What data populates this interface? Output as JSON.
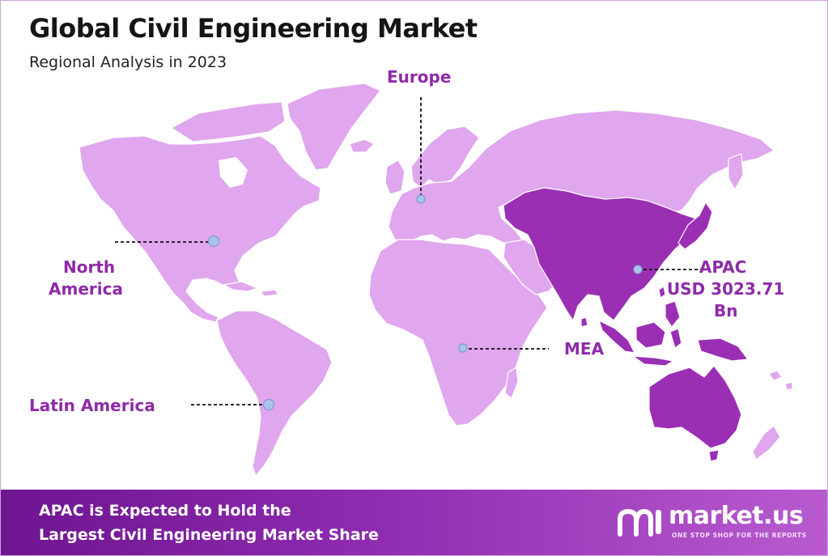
{
  "header": {
    "title": "Global Civil Engineering Market",
    "subtitle": "Regional Analysis in 2023"
  },
  "map": {
    "colors": {
      "land": "#e0a6ee",
      "highlight": "#9a2fb4",
      "marker": "#a9c4ec",
      "marker_stroke": "#7e9fd0",
      "leader": "#111111",
      "label": "#8e2aa8"
    },
    "regions": {
      "europe": {
        "label": "Europe"
      },
      "north_america": {
        "line1": "North",
        "line2": "America"
      },
      "latin_america": {
        "label": "Latin America"
      },
      "mea": {
        "label": "MEA"
      },
      "apac": {
        "line1": "APAC",
        "line2": "USD 3023.71",
        "line3": "Bn",
        "highlighted": true
      }
    }
  },
  "footer": {
    "line1": "APAC is Expected to Hold the",
    "line2": "Largest Civil Engineering Market Share",
    "logo_name": "market.us",
    "logo_tagline": "ONE STOP SHOP FOR THE REPORTS"
  }
}
